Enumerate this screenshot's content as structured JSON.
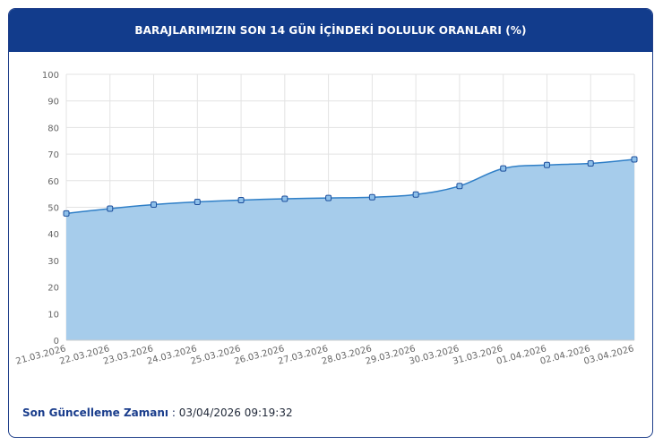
{
  "header": {
    "title": "BARAJLARIMIZIN SON 14 GÜN İÇİNDEKİ DOLULUK ORANLARI (%)"
  },
  "footer": {
    "label": "Son Güncelleme Zamanı",
    "separator": " : ",
    "value": "03/04/2026 09:19:32"
  },
  "chart_data": {
    "type": "area",
    "title": "BARAJLARIMIZIN SON 14 GÜN İÇİNDEKİ DOLULUK ORANLARI (%)",
    "xlabel": "",
    "ylabel": "",
    "categories": [
      "21.03.2026",
      "22.03.2026",
      "23.03.2026",
      "24.03.2026",
      "25.03.2026",
      "26.03.2026",
      "27.03.2026",
      "28.03.2026",
      "29.03.2026",
      "30.03.2026",
      "31.03.2026",
      "01.04.2026",
      "02.04.2026",
      "03.04.2026"
    ],
    "series": [
      {
        "name": "",
        "values": [
          47.7,
          49.5,
          51.0,
          52.0,
          52.7,
          53.2,
          53.5,
          53.8,
          54.8,
          58.0,
          64.6,
          65.9,
          66.5,
          68.0
        ]
      }
    ],
    "ylim": [
      0,
      100
    ],
    "yticks": [
      0,
      10,
      20,
      30,
      40,
      50,
      60,
      70,
      80,
      90,
      100
    ],
    "grid": true,
    "legend": "none",
    "colors": {
      "fill": "#a6cceb",
      "line": "#2f7fc7",
      "marker_fill": "#8ec0ea",
      "marker_stroke": "#1e4f9c",
      "grid": "#e3e3e3",
      "axis_text": "#666666"
    }
  }
}
